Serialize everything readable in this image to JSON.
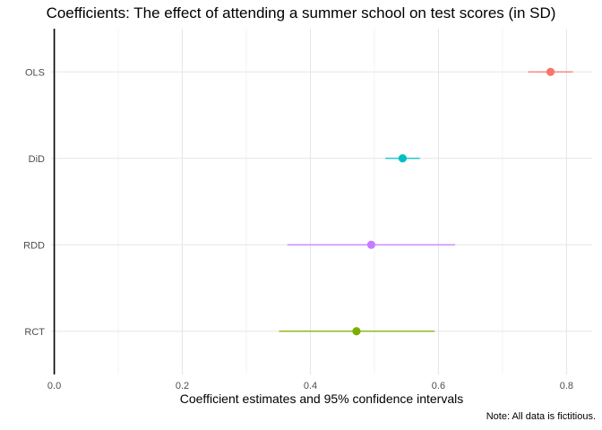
{
  "chart_data": {
    "type": "scatter",
    "title": "Coefficients: The effect of attending a summer school on test scores (in SD)",
    "xlabel": "Coefficient estimates and 95% confidence intervals",
    "ylabel": "",
    "caption": "Note: All data is fictitious.",
    "xlim": [
      -0.005,
      0.84
    ],
    "x_ticks": [
      0.0,
      0.2,
      0.4,
      0.6,
      0.8
    ],
    "x_tick_labels": [
      "0.0",
      "0.2",
      "0.4",
      "0.6",
      "0.8"
    ],
    "vline": 0.0,
    "grid": true,
    "legend": "none",
    "categories": [
      "OLS",
      "DiD",
      "RDD",
      "RCT"
    ],
    "series": [
      {
        "category": "OLS",
        "estimate": 0.775,
        "ci_low": 0.74,
        "ci_high": 0.81,
        "color": "#F8766D"
      },
      {
        "category": "DiD",
        "estimate": 0.544,
        "ci_low": 0.517,
        "ci_high": 0.571,
        "color": "#00BFC4"
      },
      {
        "category": "RDD",
        "estimate": 0.495,
        "ci_low": 0.364,
        "ci_high": 0.626,
        "color": "#C77CFF"
      },
      {
        "category": "RCT",
        "estimate": 0.472,
        "ci_low": 0.351,
        "ci_high": 0.594,
        "color": "#7CAE00"
      }
    ]
  }
}
